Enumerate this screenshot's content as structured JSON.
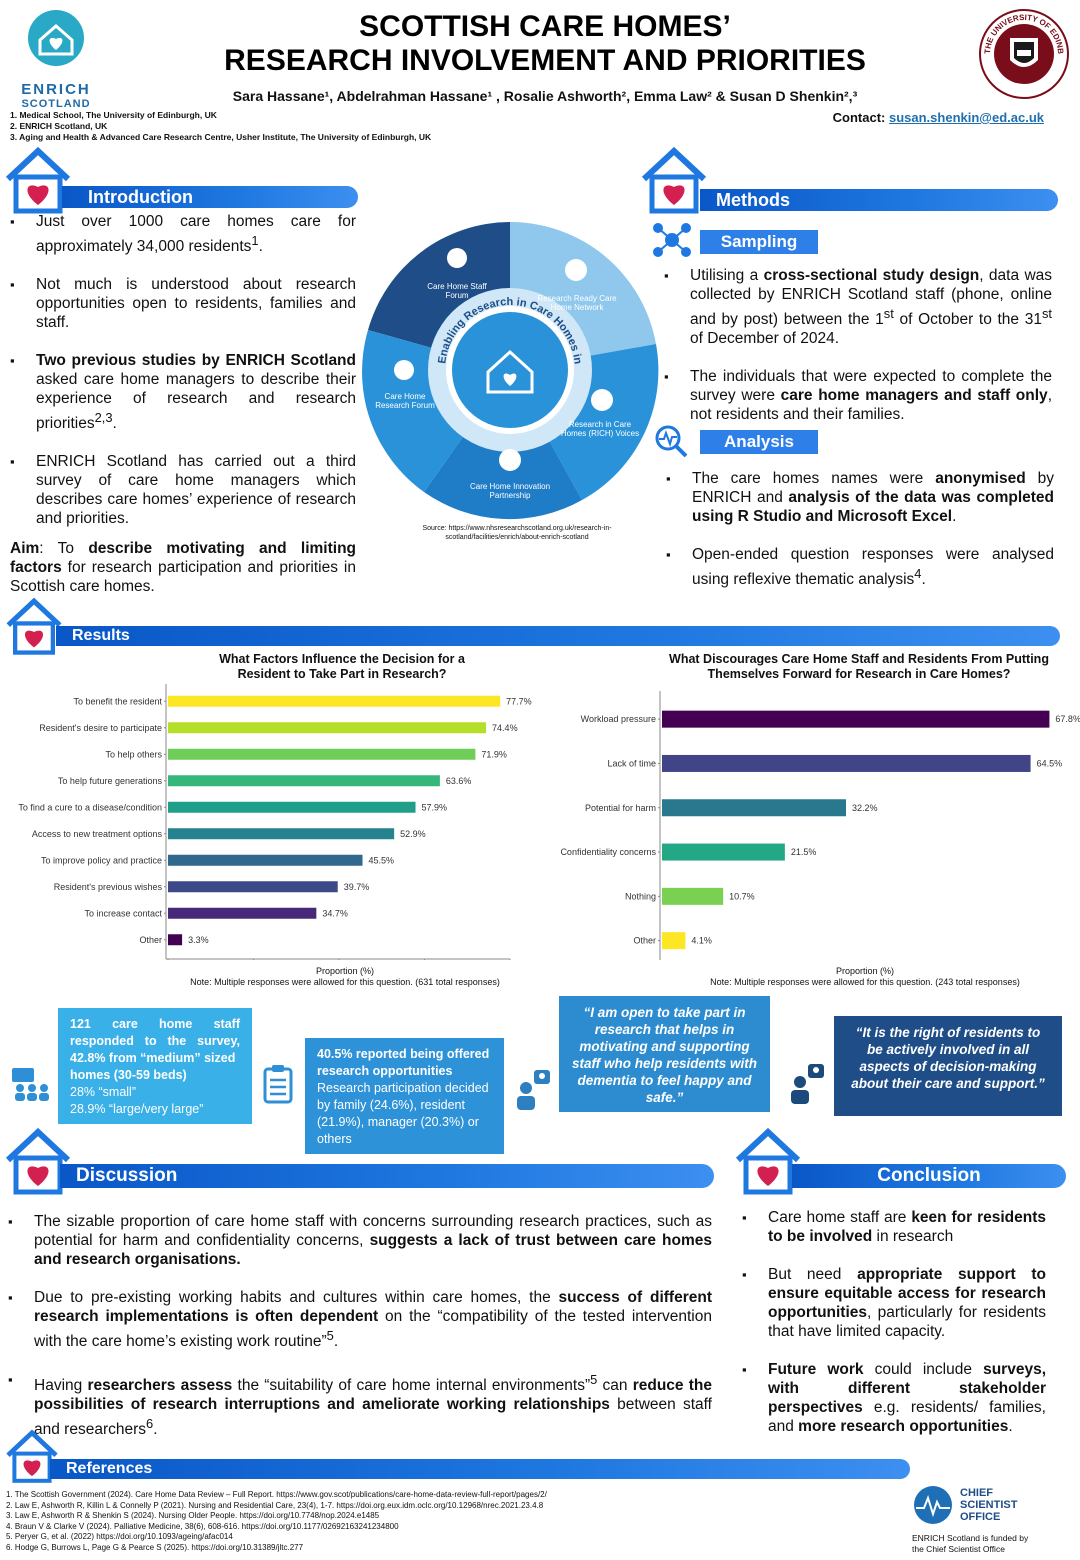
{
  "header": {
    "title_line1": "SCOTTISH CARE HOMES’",
    "title_line2": "RESEARCH INVOLVEMENT AND PRIORITIES",
    "authors": "Sara Hassane¹, Abdelrahman Hassane¹ , Rosalie Ashworth², Emma Law² & Susan D Shenkin²,³",
    "affiliations": [
      "1. Medical School, The University of Edinburgh, UK",
      "2. ENRICH Scotland, UK",
      "3. Aging and Health & Advanced Care Research Centre, Usher Institute, The University of Edinburgh, UK"
    ],
    "contact_label": "Contact:",
    "contact_email": "susan.shenkin@ed.ac.uk",
    "logo_left_text1": "ENRICH",
    "logo_left_text2": "SCOTLAND",
    "logo_right_text": "THE UNIVERSITY OF EDINBURGH"
  },
  "introduction": {
    "heading": "Introduction",
    "bullets": [
      "Just over 1000 care homes care for approximately 34,000 residents¹.",
      "Not much is understood about research opportunities open to residents, families and staff.",
      "Two previous studies by ENRICH Scotland asked care home managers to describe their experience of research and research priorities²,³.",
      "ENRICH Scotland has carried out a third survey of care home managers which describes care homes’ experience of research and priorities."
    ],
    "aim_label": "Aim",
    "aim_text": ": To describe motivating and limiting factors for research participation and priorities in Scottish care homes."
  },
  "puzzle": {
    "center_text": "Enabling Research in Care Homes in Scotland",
    "pieces": [
      "Care Home Staff Forum",
      "Research Ready Care Home Network",
      "Research in Care Homes (RICH) Voices",
      "Care Home Innovation Partnership",
      "Care Home Research Forum"
    ],
    "source": "Source: https://www.nhsresearchscotland.org.uk/research-in-scotland/facilities/enrich/about-enrich-scotland"
  },
  "methods": {
    "heading": "Methods",
    "sampling_heading": "Sampling",
    "sampling_bullets": [
      "Utilising a cross-sectional study design, data was collected by ENRICH Scotland staff (phone, online and by post) between the 1st of October to the 31st of December of 2024.",
      "The individuals that were expected to complete the survey were care home managers and staff only, not residents and their families."
    ],
    "analysis_heading": "Analysis",
    "analysis_bullets": [
      "The care homes names were anonymised by ENRICH and analysis of the data was completed using R Studio and Microsoft Excel.",
      "Open-ended question responses were analysed using reflexive thematic analysis⁴."
    ]
  },
  "results": {
    "heading": "Results",
    "staff_box": [
      "121 care home staff responded to the survey,",
      "42.8% from “medium” sized homes (30-59 beds)",
      "28% “small”",
      "28.9% “large/very large”"
    ],
    "offer_box": [
      "40.5% reported being offered research opportunities",
      "Research participation decided by family (24.6%), resident (21.9%), manager (20.3%) or others"
    ],
    "quote1": "“I am open to take part in research that helps in motivating and supporting staff who help residents with dementia to feel happy and safe.”",
    "quote2": "“It is the right of residents to be actively involved in all aspects of decision-making about their care and support.”"
  },
  "chart_data": [
    {
      "type": "bar",
      "orientation": "horizontal",
      "title": "What Factors Influence the Decision for a Resident to Take Part in Research?",
      "xlabel": "Proportion (%)",
      "note": "Note: Multiple responses were allowed for this question. (631 total responses)",
      "categories": [
        "To benefit the resident",
        "Resident's desire to participate",
        "To help others",
        "To help future generations",
        "To find a cure to a disease/condition",
        "Access to new treatment options",
        "To improve policy and practice",
        "Resident's previous wishes",
        "To increase contact",
        "Other"
      ],
      "values": [
        77.7,
        74.4,
        71.9,
        63.6,
        57.9,
        52.9,
        45.5,
        39.7,
        34.7,
        3.3
      ],
      "labels": [
        "77.7%",
        "74.4%",
        "71.9%",
        "63.6%",
        "57.9%",
        "52.9%",
        "45.5%",
        "39.7%",
        "34.7%",
        "3.3%"
      ],
      "colors": [
        "#fde725",
        "#b5de2b",
        "#6ece58",
        "#35b779",
        "#1f9e89",
        "#26828e",
        "#31688e",
        "#3e4989",
        "#482878",
        "#440154"
      ],
      "xlim": [
        0,
        80
      ],
      "xticks": [
        0,
        20,
        40,
        60,
        80
      ]
    },
    {
      "type": "bar",
      "orientation": "horizontal",
      "title": "What Discourages Care Home Staff and Residents From Putting Themselves Forward for Research in Care Homes?",
      "xlabel": "Proportion (%)",
      "note": "Note: Multiple responses were allowed for this question. (243 total responses)",
      "categories": [
        "Workload pressure",
        "Lack of time",
        "Potential for harm",
        "Confidentiality concerns",
        "Nothing",
        "Other"
      ],
      "values": [
        67.8,
        64.5,
        32.2,
        21.5,
        10.7,
        4.1
      ],
      "labels": [
        "67.8%",
        "64.5%",
        "32.2%",
        "21.5%",
        "10.7%",
        "4.1%"
      ],
      "colors": [
        "#440154",
        "#414487",
        "#2a788e",
        "#22a884",
        "#7ad151",
        "#fde725"
      ],
      "xlim": [
        0,
        70
      ],
      "xticks": [
        0,
        20,
        40,
        60
      ]
    }
  ],
  "discussion": {
    "heading": "Discussion",
    "bullets": [
      "The sizable proportion of care home staff with concerns surrounding research practices, such as potential for harm and confidentiality concerns, suggests a lack of trust between care homes and research organisations.",
      "Due to pre-existing working habits and cultures within care homes, the success of different research implementations is often dependent on the “compatibility of the tested intervention with the care home’s existing work routine”⁵.",
      "Having researchers assess the “suitability of care home internal environments”⁵ can reduce the possibilities of research interruptions and ameliorate working relationships between staff and researchers⁶."
    ]
  },
  "conclusion": {
    "heading": "Conclusion",
    "bullets": [
      "Care home staff are keen for residents to be involved in research",
      "But need appropriate support to ensure equitable access for research opportunities, particularly for residents that have limited capacity.",
      "Future work could include surveys, with different stakeholder perspectives e.g. residents/ families, and more research opportunities."
    ]
  },
  "references": {
    "heading": "References",
    "items": [
      "1. The Scottish Government (2024). Care Home Data Review – Full Report. https://www.gov.scot/publications/care-home-data-review-full-report/pages/2/",
      "2. Law E, Ashworth R, Killin L & Connelly P (2021). Nursing and Residential Care, 23(4), 1-7. https://doi.org.eux.idm.oclc.org/10.12968/nrec.2021.23.4.8",
      "3. Law E, Ashworth R & Shenkin S (2024). Nursing Older People. https://doi.org/10.7748/nop.2024.e1485",
      "4. Braun V & Clarke V (2024). Palliative Medicine, 38(6), 608-616. https://doi.org/10.1177/02692163241234800",
      "5. Peryer G, et al. (2022) https://doi.org/10.1093/ageing/afac014",
      "6. Hodge G, Burrows L, Page G & Pearce S (2025). https://doi.org/10.31389/jltc.277"
    ]
  },
  "funder": {
    "logo_text": "CHIEF SCIENTIST OFFICE",
    "funded_text": "ENRICH Scotland is funded by the Chief Scientist Office"
  }
}
